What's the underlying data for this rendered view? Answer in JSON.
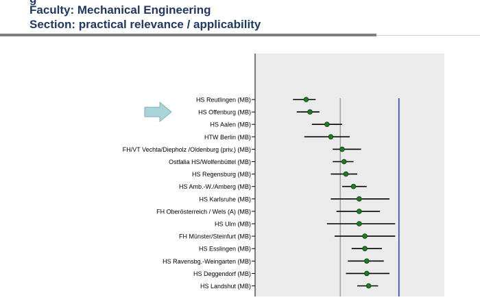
{
  "header": {
    "top_clipped": "g",
    "faculty": "Faculty: Mechanical Engineering",
    "section": "Section: practical relevance / applicability"
  },
  "colors": {
    "header_text": "#1f3864",
    "plot_bg": "#ebebeb",
    "point_fill": "#1e7d1e",
    "error_bar": "#000000",
    "reference_line_gray": "#8c8c8c",
    "reference_line_blue": "#3c3cd2",
    "arrow_fill": "#a9d3d8"
  },
  "marker": {
    "type": "arrow-icon",
    "points_to": "HS Offenburg (MB)"
  },
  "chart_data": {
    "type": "dot-errorbar",
    "orientation": "horizontal",
    "grid": false,
    "legend": "none",
    "xlim": [
      0,
      100
    ],
    "reference_lines": [
      {
        "x": 45,
        "color": "#8c8c8c"
      },
      {
        "x": 76,
        "color": "#3c3cd2"
      }
    ],
    "categories": [
      "HS Reutlingen (MB)",
      "HS Offenburg (MB)",
      "HS Aalen (MB)",
      "HTW Berlin (MB)",
      "FH/VT Vechta/Diepholz /Oldenburg (priv.) (MB)",
      "Ostfalia HS/Wolfenbüttel (MB)",
      "HS Regensburg (MB)",
      "HS Amb.-W./Amberg (MB)",
      "HS Karlsruhe (MB)",
      "FH Oberösterreich / Wels (A) (MB)",
      "HS Ulm (MB)",
      "FH Münster/Steinfurt (MB)",
      "HS Esslingen (MB)",
      "HS Ravensbg.-Weingarten (MB)",
      "HS Deggendorf (MB)",
      "HS Landshut (MB)"
    ],
    "values": [
      27,
      29,
      38,
      40,
      46,
      47,
      48,
      52,
      55,
      55,
      55,
      58,
      58,
      59,
      59,
      60
    ],
    "lower": [
      20,
      22,
      30,
      26,
      41,
      41,
      40,
      46,
      40,
      43,
      38,
      42,
      51,
      49,
      48,
      54
    ],
    "upper": [
      32,
      34,
      46,
      50,
      56,
      52,
      54,
      59,
      71,
      66,
      74,
      74,
      67,
      68,
      71,
      65
    ]
  }
}
